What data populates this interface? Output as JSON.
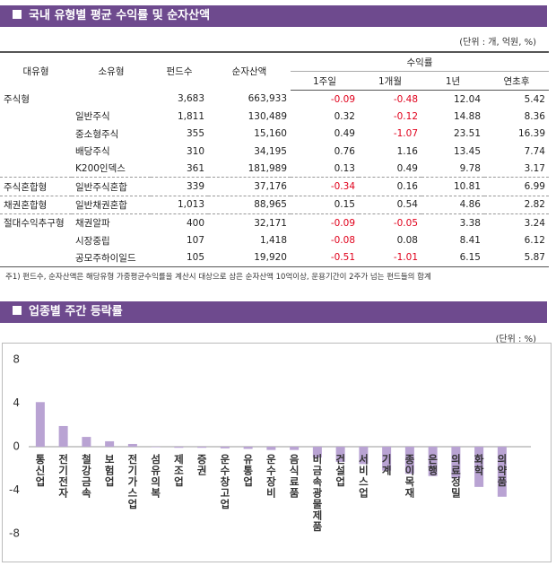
{
  "section1": {
    "title": "국내 유형별 평균 수익률 및 순자산액",
    "unit": "(단위 : 개, 억원, %)",
    "table": {
      "headers": [
        "대유형",
        "소유형",
        "펀드수",
        "순자산액",
        "수익률"
      ],
      "subheaders": [
        "1주일",
        "1개월",
        "1년",
        "연초후"
      ],
      "rows": [
        [
          "주식형",
          null,
          "3,683",
          "663,933",
          "-0.09",
          "-0.48",
          "12.04",
          "5.42"
        ],
        [
          null,
          "일반주식",
          "1,811",
          "130,489",
          "0.32",
          "-0.12",
          "14.88",
          "8.36"
        ],
        [
          null,
          "중소형주식",
          "355",
          "15,160",
          "0.49",
          "-1.07",
          "23.51",
          "16.39"
        ],
        [
          null,
          "배당주식",
          "310",
          "34,195",
          "0.76",
          "1.16",
          "13.45",
          "7.74"
        ],
        [
          null,
          "K200인덱스",
          "361",
          "181,989",
          "0.13",
          "0.49",
          "9.78",
          "3.17"
        ],
        [
          "주식혼합형",
          "일반주식혼합",
          "339",
          "37,176",
          "-0.34",
          "0.16",
          "10.81",
          "6.99"
        ],
        [
          "채권혼합형",
          "일반채권혼합",
          "1,013",
          "88,965",
          "0.15",
          "0.54",
          "4.86",
          "2.82"
        ],
        [
          "절대수익추구형",
          "채권알파",
          "400",
          "32,171",
          "-0.09",
          "-0.05",
          "3.38",
          "3.24"
        ],
        [
          null,
          "시장중립",
          "107",
          "1,418",
          "-0.08",
          "0.08",
          "8.41",
          "6.12"
        ],
        [
          null,
          "공모주하이일드",
          "105",
          "19,920",
          "-0.51",
          "-1.01",
          "6.15",
          "5.87"
        ]
      ]
    },
    "footnote": "주1) 펀드수, 순자산액은 해당유형 가중평균수익률을 계산시 대상으로 삼은 순자산액 10억이상, 운용기간이 2주가 넘는 펀드들의 합계"
  },
  "section2": {
    "title": "업종별 주간 등락률",
    "unit": "(단위 : %)"
  },
  "chart_data": {
    "type": "bar",
    "categories": [
      "통신업",
      "전기전자",
      "철강금속",
      "보험업",
      "전기가스업",
      "섬유의복",
      "제조업",
      "증권",
      "운수창고업",
      "유통업",
      "운수장비",
      "음식료품",
      "비금속광물제품",
      "건설업",
      "서비스업",
      "기계",
      "종이목재",
      "은행",
      "의료정밀",
      "화학",
      "의약품"
    ],
    "values": [
      4.1,
      1.9,
      0.9,
      0.5,
      0.25,
      -0.05,
      -0.1,
      -0.1,
      -0.15,
      -0.2,
      -0.3,
      -0.3,
      -1.0,
      -1.4,
      -1.6,
      -2.2,
      -2.5,
      -2.7,
      -2.9,
      -3.7,
      -4.6
    ],
    "color": "#b9a3d3",
    "ylim": [
      -8,
      8
    ],
    "yticks": [
      8,
      4,
      0,
      -4,
      -8
    ]
  }
}
